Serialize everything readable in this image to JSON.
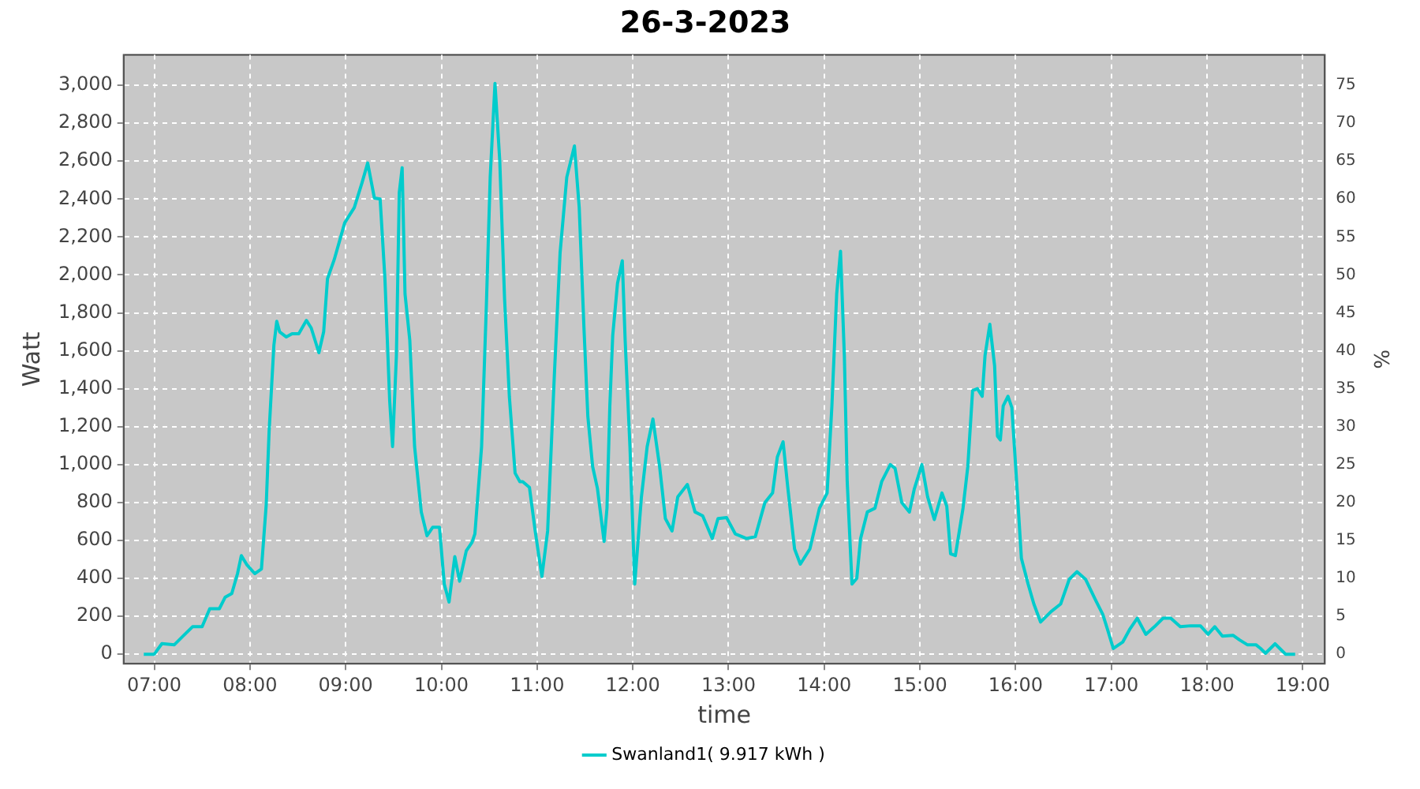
{
  "chart_data": {
    "type": "line",
    "title": "26-3-2023",
    "xlabel": "time",
    "ylabel": "Watt",
    "y2label": "%",
    "x": [
      6.89,
      7.0,
      7.08,
      7.21,
      7.32,
      7.4,
      7.5,
      7.58,
      7.68,
      7.74,
      7.81,
      7.87,
      7.91,
      7.97,
      8.05,
      8.12,
      8.17,
      8.2,
      8.25,
      8.28,
      8.31,
      8.38,
      8.44,
      8.51,
      8.59,
      8.64,
      8.72,
      8.77,
      8.81,
      8.88,
      8.99,
      9.09,
      9.17,
      9.23,
      9.3,
      9.36,
      9.41,
      9.46,
      9.49,
      9.53,
      9.56,
      9.59,
      9.62,
      9.67,
      9.72,
      9.79,
      9.85,
      9.91,
      9.98,
      10.03,
      10.08,
      10.14,
      10.19,
      10.26,
      10.32,
      10.35,
      10.42,
      10.47,
      10.51,
      10.56,
      10.61,
      10.66,
      10.71,
      10.77,
      10.82,
      10.85,
      10.92,
      10.98,
      11.05,
      11.11,
      11.18,
      11.24,
      11.31,
      11.39,
      11.44,
      11.49,
      11.53,
      11.58,
      11.63,
      11.7,
      11.73,
      11.76,
      11.79,
      11.84,
      11.89,
      11.92,
      11.97,
      12.02,
      12.09,
      12.15,
      12.21,
      12.28,
      12.34,
      12.41,
      12.47,
      12.57,
      12.65,
      12.73,
      12.83,
      12.89,
      12.98,
      13.07,
      13.19,
      13.28,
      13.38,
      13.46,
      13.51,
      13.57,
      13.62,
      13.69,
      13.75,
      13.85,
      13.95,
      14.03,
      14.08,
      14.13,
      14.17,
      14.21,
      14.24,
      14.29,
      14.34,
      14.38,
      14.45,
      14.53,
      14.6,
      14.69,
      14.74,
      14.81,
      14.89,
      14.94,
      15.02,
      15.08,
      15.15,
      15.23,
      15.28,
      15.32,
      15.37,
      15.45,
      15.5,
      15.55,
      15.6,
      15.65,
      15.68,
      15.73,
      15.78,
      15.81,
      15.84,
      15.87,
      15.92,
      15.96,
      16.0,
      16.06,
      16.13,
      16.19,
      16.26,
      16.37,
      16.47,
      16.56,
      16.64,
      16.73,
      16.83,
      16.91,
      16.96,
      17.02,
      17.12,
      17.19,
      17.27,
      17.36,
      17.45,
      17.54,
      17.62,
      17.72,
      17.83,
      17.93,
      18.01,
      18.08,
      18.16,
      18.27,
      18.34,
      18.42,
      18.51,
      18.56,
      18.61,
      18.71,
      18.76,
      18.82,
      18.92
    ],
    "series": [
      {
        "name": "Swanland1( 9.917 kWh )",
        "color": "#00cccc",
        "values": [
          0,
          0,
          56,
          50,
          105,
          145,
          145,
          240,
          240,
          300,
          320,
          425,
          520,
          470,
          425,
          450,
          790,
          1175,
          1630,
          1755,
          1700,
          1673,
          1690,
          1690,
          1760,
          1720,
          1590,
          1700,
          1980,
          2080,
          2275,
          2355,
          2485,
          2590,
          2405,
          2400,
          1980,
          1335,
          1095,
          1575,
          2435,
          2565,
          1900,
          1655,
          1095,
          750,
          625,
          670,
          670,
          370,
          275,
          515,
          385,
          545,
          590,
          635,
          1095,
          1840,
          2515,
          3010,
          2600,
          1875,
          1360,
          955,
          910,
          910,
          880,
          650,
          410,
          650,
          1470,
          2115,
          2515,
          2680,
          2355,
          1715,
          1255,
          990,
          875,
          595,
          770,
          1310,
          1680,
          1955,
          2075,
          1655,
          1095,
          370,
          830,
          1095,
          1240,
          990,
          715,
          650,
          830,
          895,
          750,
          730,
          610,
          715,
          720,
          635,
          610,
          620,
          800,
          850,
          1040,
          1120,
          875,
          555,
          475,
          555,
          770,
          850,
          1310,
          1900,
          2125,
          1575,
          910,
          370,
          400,
          610,
          750,
          770,
          910,
          1000,
          980,
          800,
          750,
          870,
          1000,
          830,
          710,
          850,
          780,
          530,
          520,
          770,
          990,
          1390,
          1400,
          1360,
          1575,
          1740,
          1520,
          1150,
          1130,
          1310,
          1360,
          1300,
          990,
          505,
          370,
          265,
          170,
          225,
          265,
          395,
          435,
          395,
          290,
          210,
          130,
          30,
          65,
          130,
          190,
          105,
          145,
          190,
          190,
          145,
          150,
          150,
          105,
          145,
          95,
          100,
          75,
          50,
          50,
          30,
          5,
          55,
          30,
          0,
          0
        ]
      }
    ],
    "xlim": [
      6.68,
      19.23
    ],
    "xticks": [
      {
        "value": 7,
        "label": "07:00"
      },
      {
        "value": 8,
        "label": "08:00"
      },
      {
        "value": 9,
        "label": "09:00"
      },
      {
        "value": 10,
        "label": "10:00"
      },
      {
        "value": 11,
        "label": "11:00"
      },
      {
        "value": 12,
        "label": "12:00"
      },
      {
        "value": 13,
        "label": "13:00"
      },
      {
        "value": 14,
        "label": "14:00"
      },
      {
        "value": 15,
        "label": "15:00"
      },
      {
        "value": 16,
        "label": "16:00"
      },
      {
        "value": 17,
        "label": "17:00"
      },
      {
        "value": 18,
        "label": "18:00"
      },
      {
        "value": 19,
        "label": "19:00"
      }
    ],
    "ylim": [
      -50,
      3160
    ],
    "yticks": [
      0,
      200,
      400,
      600,
      800,
      {
        "value": 1000,
        "label": "1,000"
      },
      {
        "value": 1200,
        "label": "1,200"
      },
      {
        "value": 1400,
        "label": "1,400"
      },
      {
        "value": 1600,
        "label": "1,600"
      },
      {
        "value": 1800,
        "label": "1,800"
      },
      {
        "value": 2000,
        "label": "2,000"
      },
      {
        "value": 2200,
        "label": "2,200"
      },
      {
        "value": 2400,
        "label": "2,400"
      },
      {
        "value": 2600,
        "label": "2,600"
      },
      {
        "value": 2800,
        "label": "2,800"
      },
      {
        "value": 3000,
        "label": "3,000"
      }
    ],
    "y2lim": [
      -1.25,
      79
    ],
    "y2ticks": [
      0,
      5,
      10,
      15,
      20,
      25,
      30,
      35,
      40,
      45,
      50,
      55,
      60,
      65,
      70,
      75
    ],
    "grid": true,
    "legend": "bottom",
    "marker": "none",
    "line_style": "solid"
  }
}
